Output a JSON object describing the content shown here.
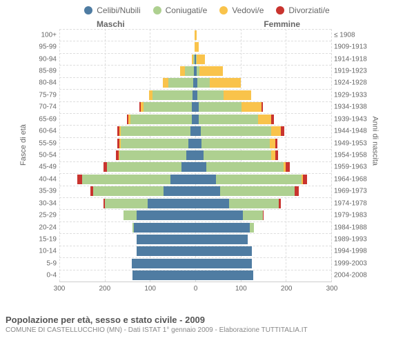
{
  "legend": [
    {
      "label": "Celibi/Nubili",
      "color": "#4f7ca2"
    },
    {
      "label": "Coniugati/e",
      "color": "#aed090"
    },
    {
      "label": "Vedovi/e",
      "color": "#f9c34b"
    },
    {
      "label": "Divorziati/e",
      "color": "#c9342f"
    }
  ],
  "axis_left_label": "Fasce di età",
  "axis_right_label": "Anni di nascita",
  "header_male": "Maschi",
  "header_female": "Femmine",
  "x_max": 300,
  "x_ticks": [
    300,
    200,
    100,
    0,
    0,
    100,
    200,
    300
  ],
  "rows": [
    {
      "age": "100+",
      "year": "≤ 1908",
      "m": [
        0,
        0,
        1,
        0
      ],
      "f": [
        0,
        0,
        3,
        0
      ]
    },
    {
      "age": "95-99",
      "year": "1909-1913",
      "m": [
        0,
        0,
        2,
        0
      ],
      "f": [
        0,
        0,
        8,
        0
      ]
    },
    {
      "age": "90-94",
      "year": "1914-1918",
      "m": [
        2,
        2,
        4,
        0
      ],
      "f": [
        2,
        1,
        18,
        0
      ]
    },
    {
      "age": "85-89",
      "year": "1919-1923",
      "m": [
        3,
        20,
        10,
        0
      ],
      "f": [
        3,
        6,
        52,
        0
      ]
    },
    {
      "age": "80-84",
      "year": "1924-1928",
      "m": [
        5,
        55,
        12,
        0
      ],
      "f": [
        4,
        28,
        68,
        0
      ]
    },
    {
      "age": "75-79",
      "year": "1929-1933",
      "m": [
        6,
        88,
        8,
        0
      ],
      "f": [
        5,
        58,
        60,
        0
      ]
    },
    {
      "age": "70-74",
      "year": "1934-1938",
      "m": [
        7,
        108,
        6,
        2
      ],
      "f": [
        7,
        95,
        45,
        2
      ]
    },
    {
      "age": "65-69",
      "year": "1939-1943",
      "m": [
        8,
        135,
        5,
        3
      ],
      "f": [
        8,
        130,
        30,
        5
      ]
    },
    {
      "age": "60-64",
      "year": "1944-1948",
      "m": [
        10,
        155,
        3,
        4
      ],
      "f": [
        12,
        155,
        22,
        8
      ]
    },
    {
      "age": "55-59",
      "year": "1949-1953",
      "m": [
        15,
        150,
        2,
        5
      ],
      "f": [
        14,
        150,
        12,
        6
      ]
    },
    {
      "age": "50-54",
      "year": "1954-1958",
      "m": [
        20,
        148,
        1,
        6
      ],
      "f": [
        18,
        150,
        8,
        7
      ]
    },
    {
      "age": "45-49",
      "year": "1959-1963",
      "m": [
        30,
        165,
        0,
        8
      ],
      "f": [
        25,
        170,
        4,
        9
      ]
    },
    {
      "age": "40-44",
      "year": "1964-1968",
      "m": [
        55,
        195,
        0,
        10
      ],
      "f": [
        45,
        190,
        2,
        10
      ]
    },
    {
      "age": "35-39",
      "year": "1969-1973",
      "m": [
        70,
        155,
        0,
        7
      ],
      "f": [
        55,
        165,
        0,
        8
      ]
    },
    {
      "age": "30-34",
      "year": "1974-1978",
      "m": [
        105,
        95,
        0,
        3
      ],
      "f": [
        75,
        110,
        0,
        4
      ]
    },
    {
      "age": "25-29",
      "year": "1979-1983",
      "m": [
        130,
        28,
        0,
        0
      ],
      "f": [
        105,
        45,
        0,
        1
      ]
    },
    {
      "age": "20-24",
      "year": "1984-1988",
      "m": [
        135,
        4,
        0,
        0
      ],
      "f": [
        120,
        10,
        0,
        0
      ]
    },
    {
      "age": "15-19",
      "year": "1989-1993",
      "m": [
        130,
        0,
        0,
        0
      ],
      "f": [
        115,
        0,
        0,
        0
      ]
    },
    {
      "age": "10-14",
      "year": "1994-1998",
      "m": [
        130,
        0,
        0,
        0
      ],
      "f": [
        125,
        0,
        0,
        0
      ]
    },
    {
      "age": "5-9",
      "year": "1999-2003",
      "m": [
        140,
        0,
        0,
        0
      ],
      "f": [
        125,
        0,
        0,
        0
      ]
    },
    {
      "age": "0-4",
      "year": "2004-2008",
      "m": [
        138,
        0,
        0,
        0
      ],
      "f": [
        128,
        0,
        0,
        0
      ]
    }
  ],
  "title": "Popolazione per età, sesso e stato civile - 2009",
  "subtitle": "COMUNE DI CASTELLUCCHIO (MN) - Dati ISTAT 1° gennaio 2009 - Elaborazione TUTTITALIA.IT"
}
